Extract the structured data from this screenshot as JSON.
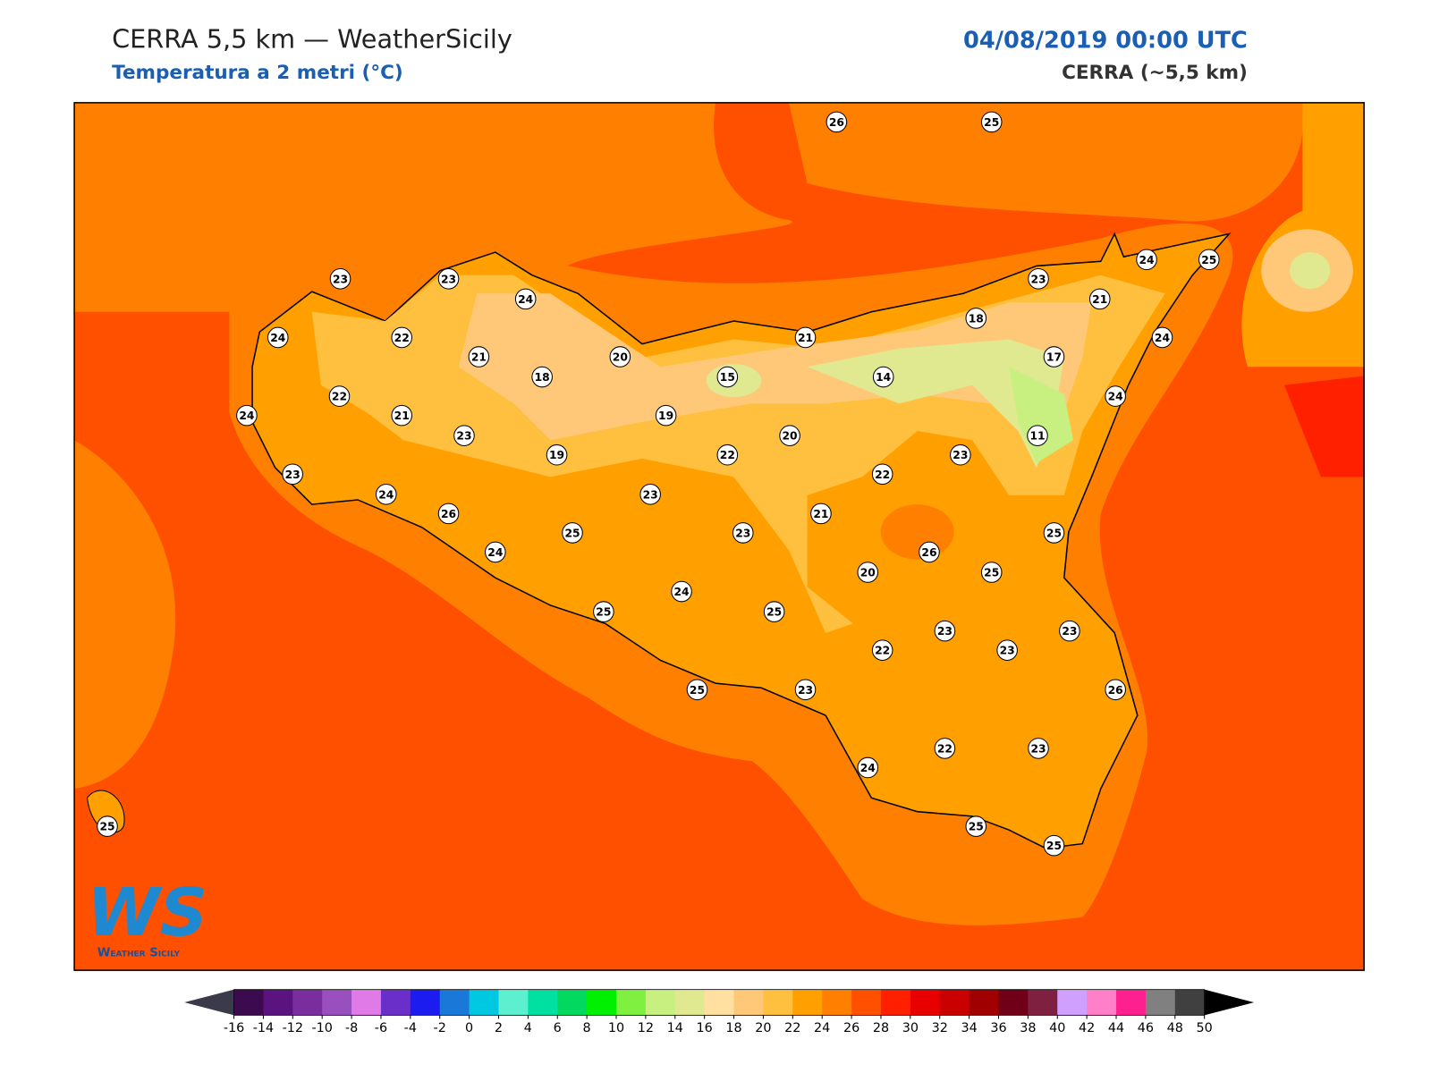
{
  "header": {
    "title": "CERRA 5,5 km — WeatherSicily",
    "subtitle": "Temperatura a 2 metri (°C)",
    "datetime": "04/08/2019 00:00 UTC",
    "model": "CERRA (~5,5 km)"
  },
  "stations": {
    "values": [
      26,
      25,
      23,
      23,
      24,
      24,
      22,
      21,
      20,
      18,
      15,
      21,
      14,
      18,
      23,
      21,
      24,
      25,
      24,
      17,
      24,
      11,
      23,
      22,
      24,
      21,
      23,
      19,
      20,
      19,
      22,
      23,
      24,
      23,
      22,
      26,
      21,
      25,
      23,
      25,
      24,
      26,
      20,
      25,
      24,
      25,
      25,
      23,
      23,
      22,
      23,
      25,
      23,
      26,
      22,
      23,
      24,
      25,
      25,
      25
    ]
  },
  "colorbar": {
    "ticks": [
      -16,
      -14,
      -12,
      -10,
      -8,
      -6,
      -4,
      -2,
      0,
      2,
      4,
      6,
      8,
      10,
      12,
      14,
      16,
      18,
      20,
      22,
      24,
      26,
      28,
      30,
      32,
      34,
      36,
      38,
      40,
      42,
      44,
      46,
      48,
      50
    ],
    "colors": [
      "#3b0a4f",
      "#5b1380",
      "#7a2e9e",
      "#9a4fbe",
      "#e07ae6",
      "#6a2fc8",
      "#1c1cf0",
      "#1a78d8",
      "#00c8e0",
      "#5cf0d0",
      "#00e0a0",
      "#00d860",
      "#00f000",
      "#80f040",
      "#c8f080",
      "#e0e890",
      "#ffe0a0",
      "#ffc878",
      "#ffc040",
      "#ffa000",
      "#ff8000",
      "#ff5000",
      "#ff2000",
      "#e80000",
      "#c80000",
      "#a00000",
      "#700018",
      "#802040",
      "#d0a0ff",
      "#ff80c8",
      "#ff2090",
      "#808080",
      "#404040"
    ],
    "under_color": "#3a3a4a",
    "over_color": "#000000"
  },
  "logo": {
    "initials": "WS",
    "name": "Weather Sicily"
  }
}
